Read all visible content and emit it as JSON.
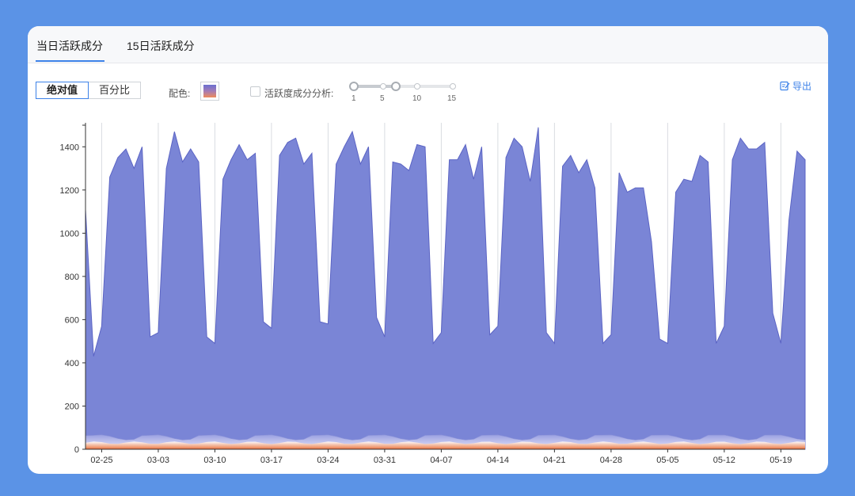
{
  "tabs": [
    {
      "label": "当日活跃成分"
    },
    {
      "label": "15日活跃成分"
    }
  ],
  "toolbar": {
    "mode_absolute": "绝对值",
    "mode_percent": "百分比",
    "color_label": "配色:",
    "analysis_label": "活跃度成分分析:",
    "slider_stops": [
      "1",
      "5",
      "10",
      "15"
    ],
    "export_label": "导出"
  },
  "colors": {
    "primary_area": "#7a85d6",
    "primary_line": "#5b64c4",
    "accent": "#3d82e8"
  },
  "chart_data": {
    "type": "area",
    "title": "",
    "xlabel": "",
    "ylabel": "",
    "ylim": [
      0,
      1500
    ],
    "yticks": [
      0,
      200,
      400,
      600,
      800,
      1000,
      1200,
      1400
    ],
    "x_tick_labels": [
      "02-25",
      "03-03",
      "03-10",
      "03-17",
      "03-24",
      "03-31",
      "04-07",
      "04-14",
      "04-21",
      "04-28",
      "05-05",
      "05-12",
      "05-19"
    ],
    "x_start": "02-23",
    "series": [
      {
        "values": [
          1110,
          430,
          570,
          1260,
          1350,
          1390,
          1300,
          1400,
          520,
          540,
          1300,
          1470,
          1330,
          1390,
          1330,
          520,
          490,
          1250,
          1340,
          1410,
          1340,
          1370,
          590,
          560,
          1360,
          1420,
          1440,
          1320,
          1370,
          590,
          580,
          1320,
          1400,
          1470,
          1320,
          1400,
          610,
          520,
          1330,
          1320,
          1290,
          1410,
          1400,
          490,
          540,
          1340,
          1340,
          1410,
          1250,
          1400,
          530,
          570,
          1350,
          1440,
          1400,
          1240,
          1490,
          540,
          490,
          1310,
          1360,
          1280,
          1340,
          1210,
          490,
          530,
          1280,
          1190,
          1210,
          1210,
          960,
          510,
          490,
          1190,
          1250,
          1240,
          1360,
          1330,
          490,
          570,
          1340,
          1440,
          1390,
          1390,
          1420,
          630,
          490,
          1060,
          1380,
          1340
        ]
      }
    ]
  }
}
